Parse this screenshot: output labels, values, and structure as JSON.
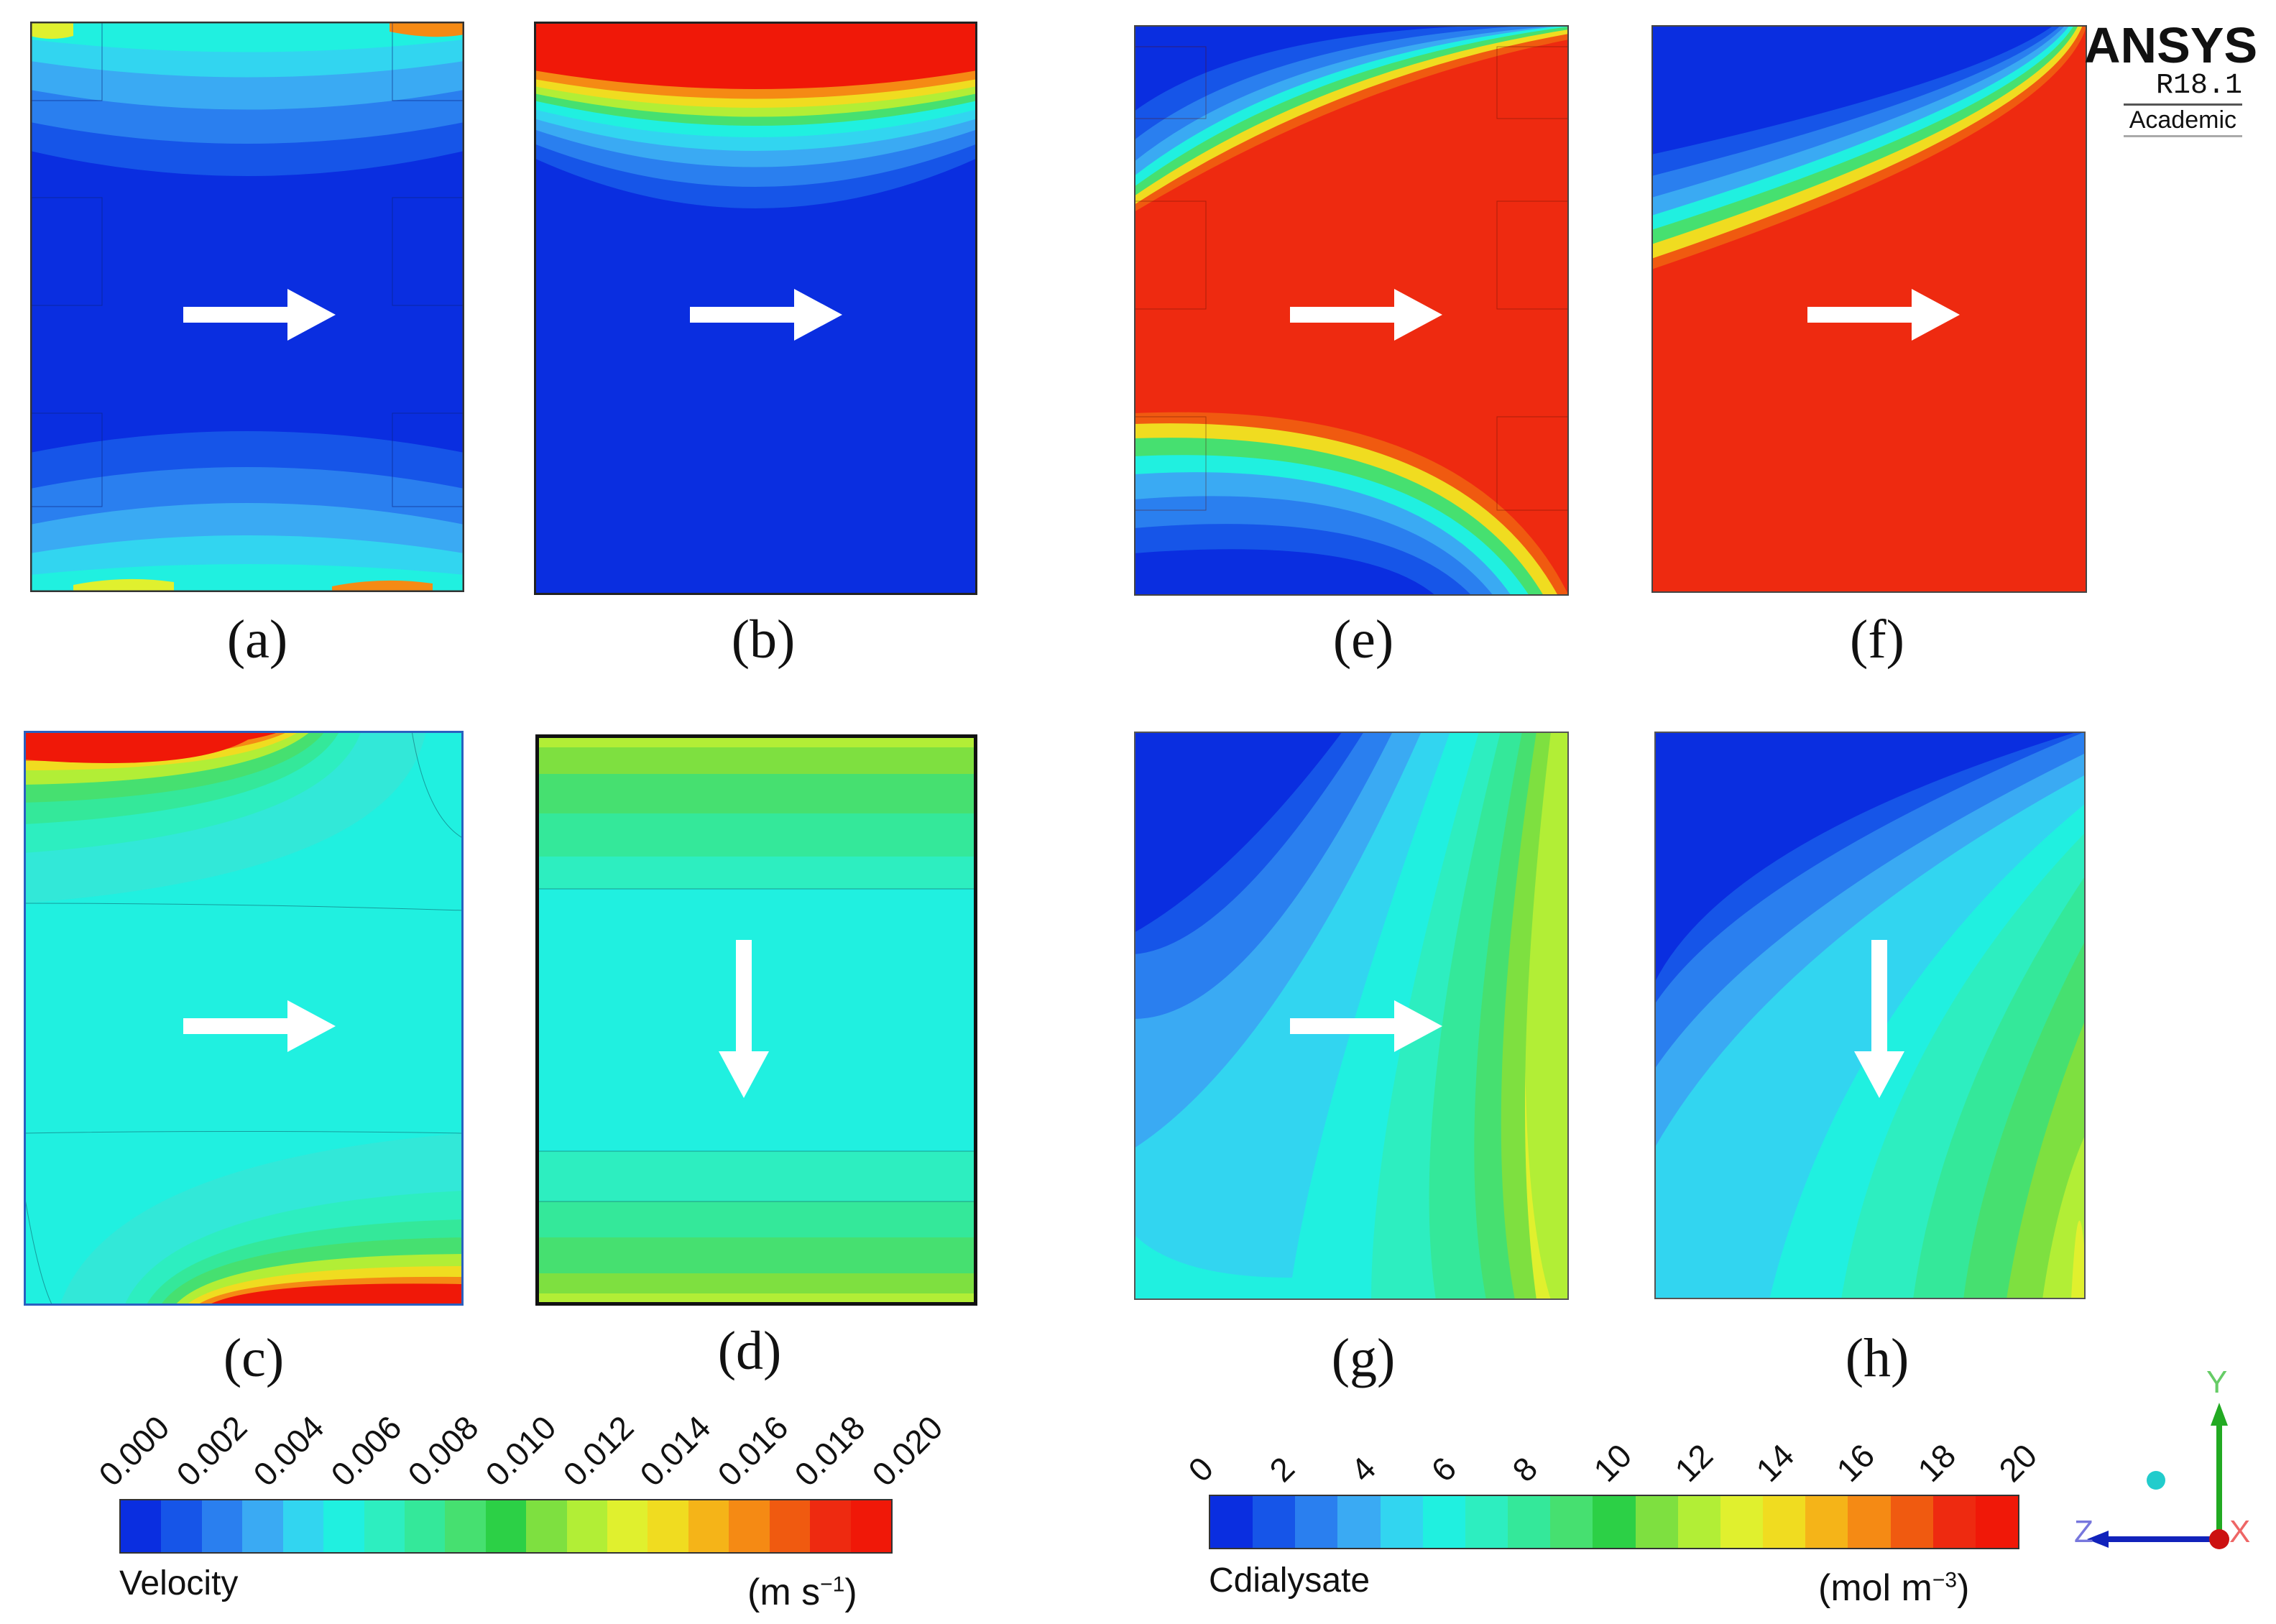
{
  "panels": [
    {
      "id": "a",
      "label": "(a)",
      "arrow": "right"
    },
    {
      "id": "b",
      "label": "(b)",
      "arrow": "right"
    },
    {
      "id": "c",
      "label": "(c)",
      "arrow": "right"
    },
    {
      "id": "d",
      "label": "(d)",
      "arrow": "down"
    },
    {
      "id": "e",
      "label": "(e)",
      "arrow": "right"
    },
    {
      "id": "f",
      "label": "(f)",
      "arrow": "right"
    },
    {
      "id": "g",
      "label": "(g)",
      "arrow": "right"
    },
    {
      "id": "h",
      "label": "(h)",
      "arrow": "down"
    }
  ],
  "logo": {
    "brand": "ANSYS",
    "version": "R18.1",
    "edition": "Academic"
  },
  "velocity_legend": {
    "name": "Velocity",
    "unit": "(m s",
    "unit_exp": "−1",
    "unit_close": ")",
    "ticks": [
      "0.000",
      "0.002",
      "0.004",
      "0.006",
      "0.008",
      "0.010",
      "0.012",
      "0.014",
      "0.016",
      "0.018",
      "0.020"
    ]
  },
  "concentration_legend": {
    "name": "Cdialysate",
    "unit": "(mol m",
    "unit_exp": "−3",
    "unit_close": ")",
    "ticks": [
      "0",
      "2",
      "4",
      "6",
      "8",
      "10",
      "12",
      "14",
      "16",
      "18",
      "20"
    ]
  },
  "axes": {
    "y": "Y",
    "z": "Z",
    "x": "X"
  },
  "colors": {
    "c0": "#0a2ee0",
    "c1": "#1655e8",
    "c2": "#2a7fef",
    "c3": "#3aaaf3",
    "c4": "#32d5f0",
    "c5": "#20f0e0",
    "c6": "#2deec0",
    "c7": "#34e89a",
    "c8": "#46e070",
    "c9": "#2cd046",
    "c10": "#7ee040",
    "c11": "#b2ee36",
    "c12": "#e0f02e",
    "c13": "#f0dc20",
    "c14": "#f5b418",
    "c15": "#f58a14",
    "c16": "#f05a10",
    "c17": "#ee2a10",
    "c18": "#f01808"
  }
}
